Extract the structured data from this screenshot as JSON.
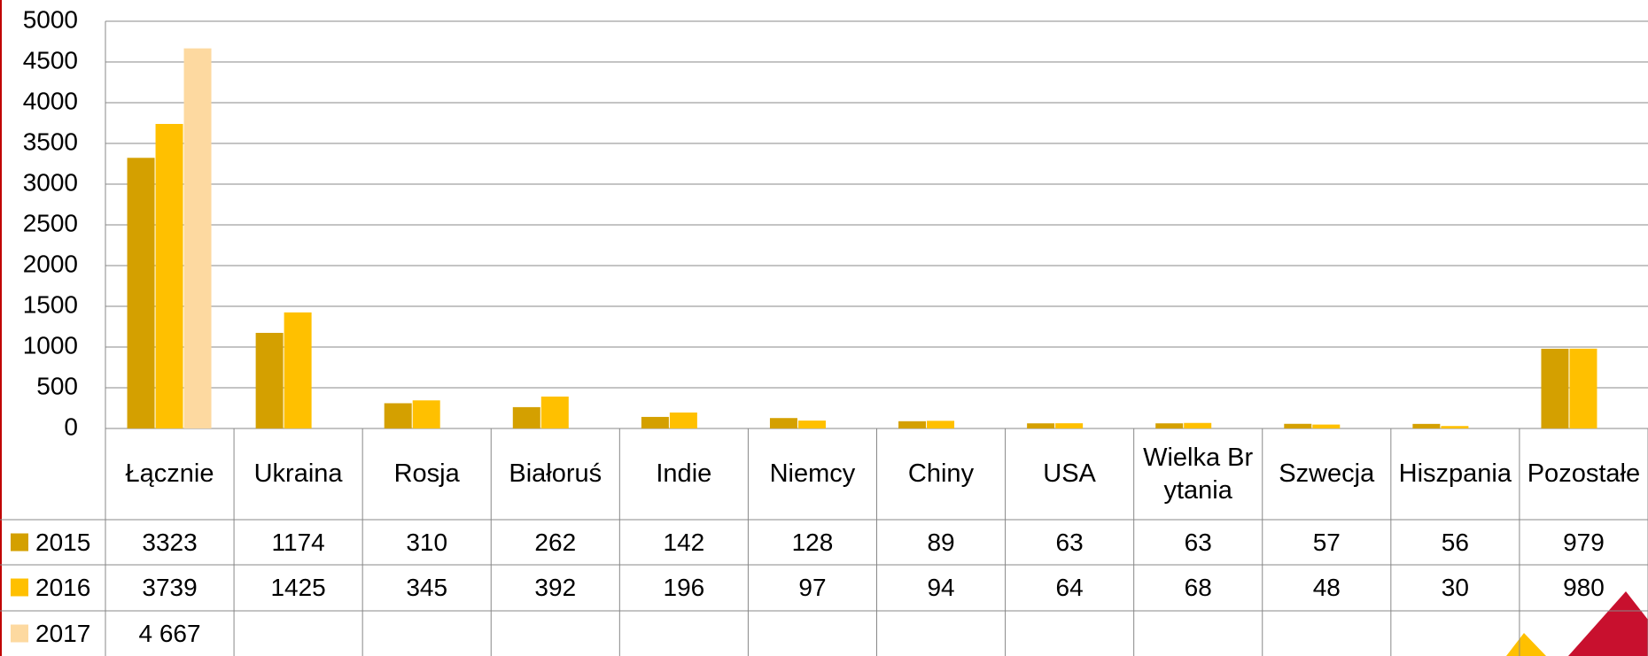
{
  "chart_data": {
    "type": "bar",
    "categories": [
      "Łącznie",
      "Ukraina",
      "Rosja",
      "Białoruś",
      "Indie",
      "Niemcy",
      "Chiny",
      "USA",
      "Wielka Brytania",
      "Szwecja",
      "Hiszpania",
      "Pozostałe"
    ],
    "series": [
      {
        "name": "2015",
        "color": "#d4a000",
        "values": [
          3323,
          1174,
          310,
          262,
          142,
          128,
          89,
          63,
          63,
          57,
          56,
          979
        ]
      },
      {
        "name": "2016",
        "color": "#ffc000",
        "values": [
          3739,
          1425,
          345,
          392,
          196,
          97,
          94,
          64,
          68,
          48,
          30,
          980
        ]
      },
      {
        "name": "2017",
        "color": "#fdd9a0",
        "values": [
          4667,
          null,
          null,
          null,
          null,
          null,
          null,
          null,
          null,
          null,
          null,
          null
        ],
        "value_labels": [
          "4 667",
          null,
          null,
          null,
          null,
          null,
          null,
          null,
          null,
          null,
          null,
          null
        ]
      }
    ],
    "ylim": [
      0,
      5000
    ],
    "yticks": [
      0,
      500,
      1000,
      1500,
      2000,
      2500,
      3000,
      3500,
      4000,
      4500,
      5000
    ],
    "grid": true
  }
}
